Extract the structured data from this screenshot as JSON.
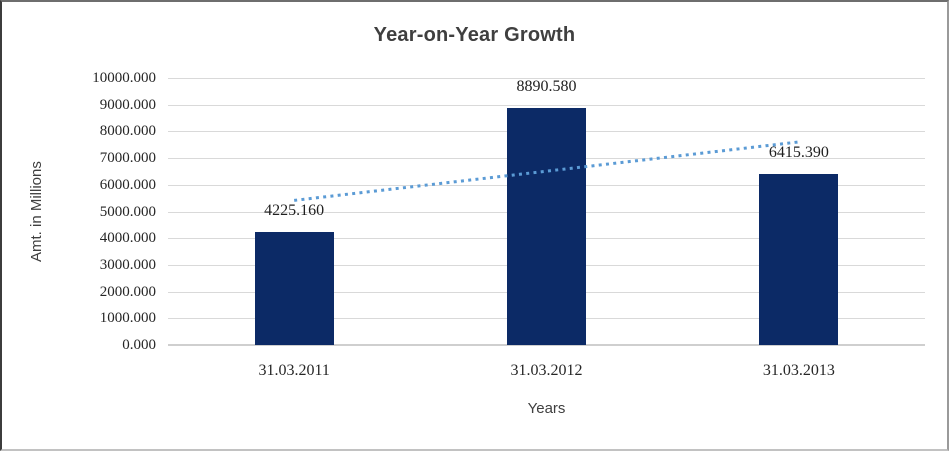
{
  "chart_data": {
    "type": "bar",
    "title": "Year-on-Year Growth",
    "xlabel": "Years",
    "ylabel": "Amt. in Millions",
    "categories": [
      "31.03.2011",
      "31.03.2012",
      "31.03.2013"
    ],
    "values": [
      4225.16,
      8890.58,
      6415.39
    ],
    "value_labels": [
      "4225.160",
      "8890.580",
      "6415.390"
    ],
    "ylim": [
      0,
      10000
    ],
    "ytick_labels": [
      "10000.000",
      "9000.000",
      "8000.000",
      "7000.000",
      "6000.000",
      "5000.000",
      "4000.000",
      "3000.000",
      "2000.000",
      "1000.000",
      "0.000"
    ],
    "grid": true,
    "legend": "none",
    "bar_color": "#0c2a66",
    "gridline_color": "#d9d9d9",
    "trendline": {
      "type": "linear",
      "style": "dotted",
      "color": "#5b9bd5"
    }
  }
}
